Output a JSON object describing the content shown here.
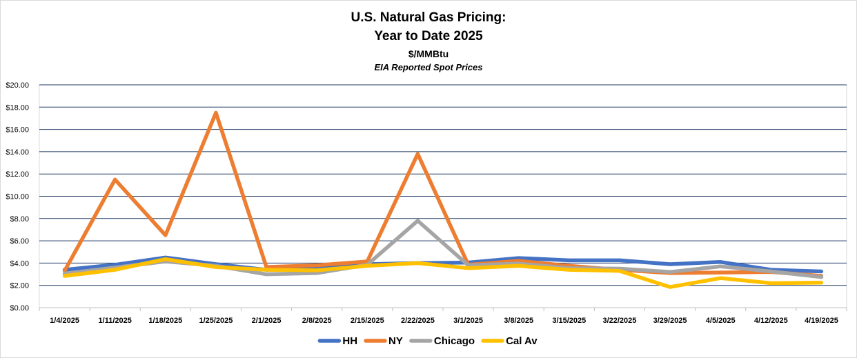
{
  "chart_data": {
    "type": "line",
    "title": "U.S. Natural Gas Pricing:",
    "title_line2": "Year to Date 2025",
    "subtitle": "$/MMBtu",
    "subtitle2": "EIA Reported Spot Prices",
    "xlabel": "",
    "ylabel": "",
    "ylim": [
      0,
      20
    ],
    "y_ticks": [
      "$0.00",
      "$2.00",
      "$4.00",
      "$6.00",
      "$8.00",
      "$10.00",
      "$12.00",
      "$14.00",
      "$16.00",
      "$18.00",
      "$20.00"
    ],
    "grid": true,
    "legend_position": "bottom",
    "categories": [
      "1/4/2025",
      "1/11/2025",
      "1/18/2025",
      "1/25/2025",
      "2/1/2025",
      "2/8/2025",
      "2/15/2025",
      "2/22/2025",
      "3/1/2025",
      "3/8/2025",
      "3/15/2025",
      "3/22/2025",
      "3/29/2025",
      "4/5/2025",
      "4/12/2025",
      "4/19/2025"
    ],
    "series": [
      {
        "name": "HH",
        "color": "#4472C4",
        "values": [
          3.4,
          3.85,
          4.5,
          3.9,
          3.4,
          3.5,
          3.9,
          4.0,
          4.05,
          4.45,
          4.25,
          4.25,
          3.9,
          4.1,
          3.4,
          3.25
        ]
      },
      {
        "name": "NY",
        "color": "#ED7D31",
        "values": [
          3.3,
          11.5,
          6.5,
          17.5,
          3.65,
          3.8,
          4.15,
          13.8,
          3.85,
          4.2,
          3.75,
          3.4,
          3.1,
          3.15,
          3.2,
          2.85
        ]
      },
      {
        "name": "Chicago",
        "color": "#A5A5A5",
        "values": [
          3.05,
          3.6,
          4.15,
          3.75,
          3.0,
          3.1,
          3.85,
          7.8,
          3.8,
          3.95,
          3.55,
          3.5,
          3.2,
          3.7,
          3.25,
          2.75
        ]
      },
      {
        "name": "Cal Av",
        "color": "#FFC000",
        "values": [
          2.85,
          3.4,
          4.35,
          3.65,
          3.4,
          3.35,
          3.75,
          4.0,
          3.55,
          3.75,
          3.4,
          3.3,
          1.85,
          2.65,
          2.2,
          2.25
        ]
      }
    ]
  }
}
